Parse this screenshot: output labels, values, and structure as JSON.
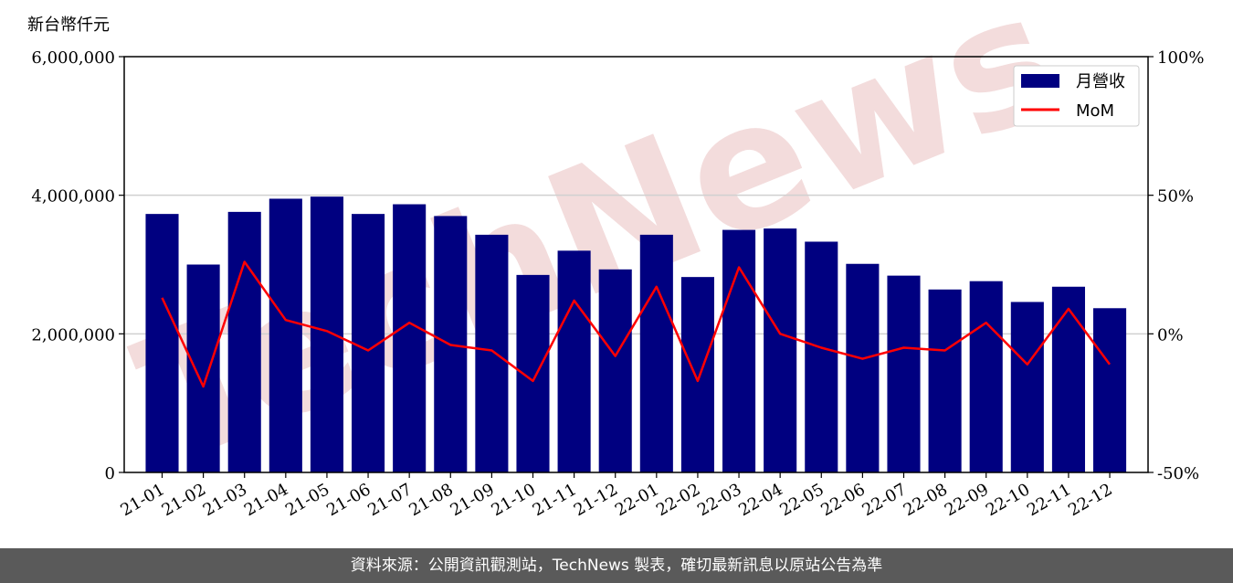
{
  "unit_label": "新台幣仟元",
  "footer_text": "資料來源：公開資訊觀測站，TechNews 製表，確切最新訊息以原站公告為準",
  "watermark_text": "TechNews",
  "colors": {
    "bar": "#000080",
    "line": "#ff0000",
    "grid": "#d0d0d0",
    "watermark": "#f3dcdc"
  },
  "chart_data": {
    "type": "bar+line",
    "categories": [
      "21-01",
      "21-02",
      "21-03",
      "21-04",
      "21-05",
      "21-06",
      "21-07",
      "21-08",
      "21-09",
      "21-10",
      "21-11",
      "21-12",
      "22-01",
      "22-02",
      "22-03",
      "22-04",
      "22-05",
      "22-06",
      "22-07",
      "22-08",
      "22-09",
      "22-10",
      "22-11",
      "22-12"
    ],
    "series": [
      {
        "name": "月營收",
        "type": "bar",
        "axis": "left",
        "values": [
          3730000,
          3000000,
          3760000,
          3950000,
          3980000,
          3730000,
          3870000,
          3700000,
          3430000,
          2850000,
          3200000,
          2930000,
          3430000,
          2820000,
          3500000,
          3520000,
          3330000,
          3010000,
          2840000,
          2640000,
          2760000,
          2460000,
          2680000,
          2370000
        ]
      },
      {
        "name": "MoM",
        "type": "line",
        "axis": "right",
        "values": [
          13,
          -19,
          26,
          5,
          1,
          -6,
          4,
          -4,
          -6,
          -17,
          12,
          -8,
          17,
          -17,
          24,
          0,
          -5,
          -9,
          -5,
          -6,
          4,
          -11,
          9,
          -11
        ]
      }
    ],
    "y_left": {
      "min": 0,
      "max": 6000000,
      "ticks": [
        "0",
        "2,000,000",
        "4,000,000",
        "6,000,000"
      ],
      "tick_values": [
        0,
        2000000,
        4000000,
        6000000
      ]
    },
    "y_right": {
      "min": -50,
      "max": 100,
      "ticks": [
        "-50%",
        "0%",
        "50%",
        "100%"
      ],
      "tick_values": [
        -50,
        0,
        50,
        100
      ]
    },
    "grid": "horizontal",
    "legend_position": "top-right"
  }
}
